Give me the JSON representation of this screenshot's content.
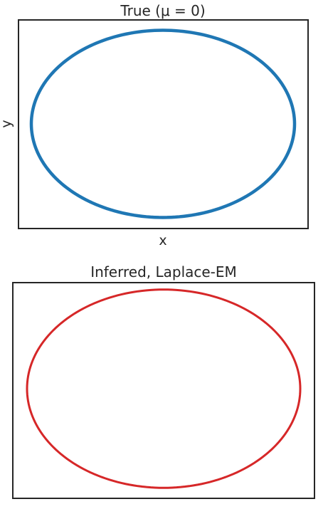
{
  "chart_data": [
    {
      "type": "line",
      "title": "True (μ = 0)",
      "xlabel": "x",
      "ylabel": "y",
      "grid": false,
      "series": [
        {
          "shape": "ellipse",
          "center": [
            0,
            0
          ],
          "semi_axes": [
            1.0,
            0.72
          ],
          "color": "#1f77b4",
          "line_width": 4.5
        }
      ]
    },
    {
      "type": "line",
      "title": "Inferred, Laplace-EM",
      "xlabel": "",
      "ylabel": "",
      "grid": false,
      "series": [
        {
          "shape": "ellipse",
          "center": [
            0,
            0
          ],
          "semi_axes": [
            1.0,
            0.74
          ],
          "color": "#d62728",
          "line_width": 3
        }
      ]
    }
  ]
}
